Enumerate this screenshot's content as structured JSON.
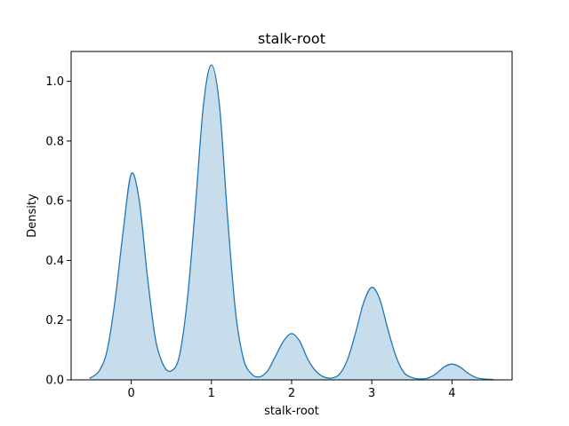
{
  "chart_data": {
    "type": "area",
    "title": "stalk-root",
    "xlabel": "stalk-root",
    "ylabel": "Density",
    "xlim": [
      -0.75,
      4.75
    ],
    "ylim": [
      0,
      1.1
    ],
    "x_ticks": [
      0,
      1,
      2,
      3,
      4
    ],
    "y_ticks": [
      0.0,
      0.2,
      0.4,
      0.6,
      0.8,
      1.0
    ],
    "x_tick_labels": [
      "0",
      "1",
      "2",
      "3",
      "4"
    ],
    "y_tick_labels": [
      "0.0",
      "0.2",
      "0.4",
      "0.6",
      "0.8",
      "1.0"
    ],
    "grid": false,
    "legend": "none",
    "series": [
      {
        "color": "#1f77b4",
        "fill_color": "#1f77b4",
        "fill_opacity": 0.25,
        "x": [
          -0.52,
          -0.4,
          -0.3,
          -0.2,
          -0.1,
          0,
          0.1,
          0.2,
          0.3,
          0.4,
          0.5,
          0.6,
          0.7,
          0.8,
          0.9,
          1.0,
          1.1,
          1.2,
          1.3,
          1.4,
          1.5,
          1.6,
          1.7,
          1.8,
          1.9,
          2.0,
          2.1,
          2.2,
          2.3,
          2.4,
          2.5,
          2.6,
          2.7,
          2.8,
          2.9,
          3.0,
          3.1,
          3.2,
          3.3,
          3.4,
          3.5,
          3.6,
          3.7,
          3.8,
          3.9,
          4.0,
          4.1,
          4.2,
          4.3,
          4.4,
          4.52
        ],
        "y": [
          0.005,
          0.03,
          0.1,
          0.27,
          0.5,
          0.69,
          0.6,
          0.35,
          0.14,
          0.05,
          0.03,
          0.08,
          0.27,
          0.58,
          0.92,
          1.055,
          0.92,
          0.55,
          0.23,
          0.07,
          0.02,
          0.01,
          0.03,
          0.08,
          0.13,
          0.155,
          0.13,
          0.07,
          0.03,
          0.01,
          0.006,
          0.02,
          0.07,
          0.16,
          0.26,
          0.31,
          0.27,
          0.17,
          0.08,
          0.025,
          0.008,
          0.003,
          0.006,
          0.02,
          0.043,
          0.053,
          0.043,
          0.022,
          0.008,
          0.003,
          0.001
        ]
      }
    ]
  }
}
